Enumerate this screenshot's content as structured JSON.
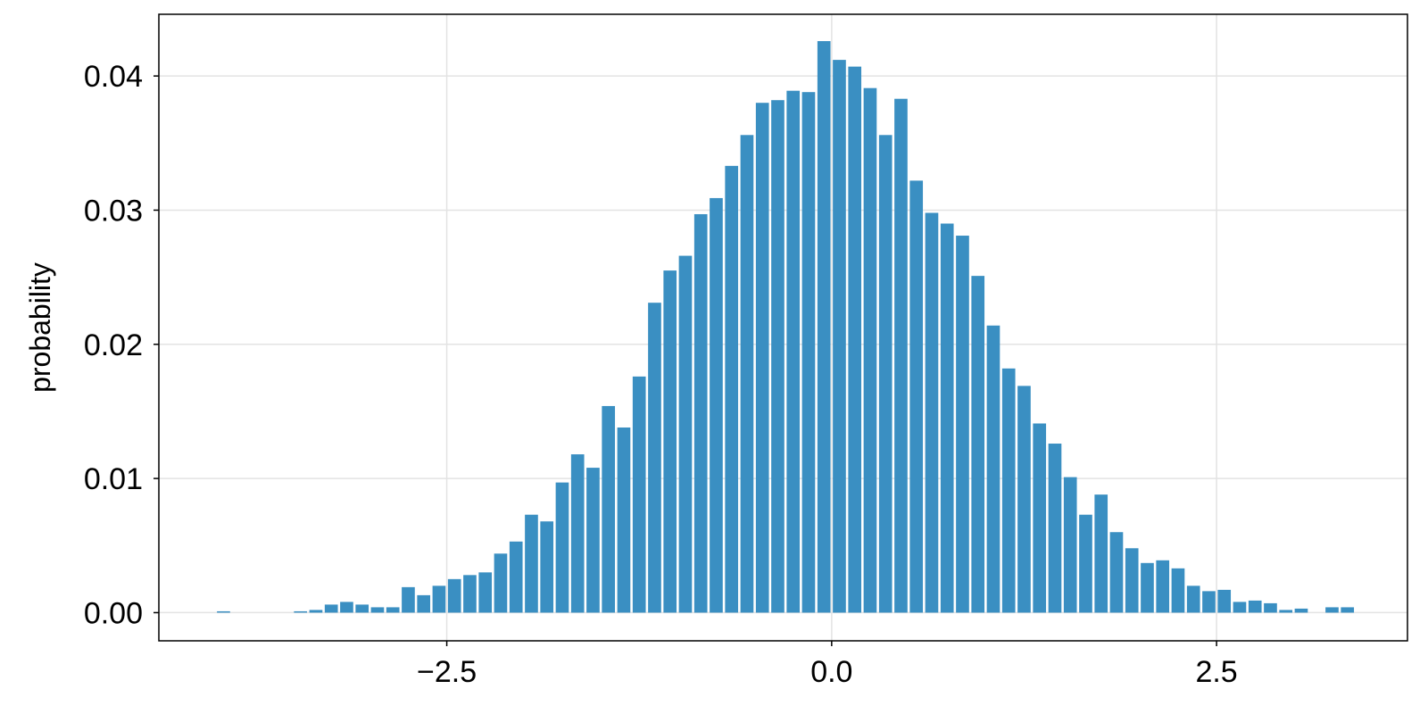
{
  "chart_data": {
    "type": "bar",
    "title": "",
    "xlabel": "",
    "ylabel": "probability",
    "xlim": [
      -4.37,
      3.74
    ],
    "ylim": [
      -0.0021,
      0.0446
    ],
    "xticks": [
      -2.5,
      0.0,
      2.5
    ],
    "xtick_labels": [
      "−2.5",
      "0.0",
      "2.5"
    ],
    "yticks": [
      0.0,
      0.01,
      0.02,
      0.03,
      0.04
    ],
    "ytick_labels": [
      "0.00",
      "0.01",
      "0.02",
      "0.03",
      "0.04"
    ],
    "grid": true,
    "bar_color": "#3a8fc2",
    "series": [
      {
        "x": [
          -3.95,
          -3.85,
          -3.75,
          -3.65,
          -3.55,
          -3.45,
          -3.35,
          -3.25,
          -3.15,
          -3.05,
          -2.95,
          -2.85,
          -2.75,
          -2.65,
          -2.55,
          -2.45,
          -2.35,
          -2.25,
          -2.15,
          -2.05,
          -1.95,
          -1.85,
          -1.75,
          -1.65,
          -1.55,
          -1.45,
          -1.35,
          -1.25,
          -1.15,
          -1.05,
          -0.95,
          -0.85,
          -0.75,
          -0.65,
          -0.55,
          -0.45,
          -0.35,
          -0.25,
          -0.15,
          -0.05,
          0.05,
          0.15,
          0.25,
          0.35,
          0.45,
          0.55,
          0.65,
          0.75,
          0.85,
          0.95,
          1.05,
          1.15,
          1.25,
          1.35,
          1.45,
          1.55,
          1.65,
          1.75,
          1.85,
          1.95,
          2.05,
          2.15,
          2.25,
          2.35,
          2.45,
          2.55,
          2.65,
          2.75,
          2.85,
          2.95,
          3.05,
          3.15,
          3.25,
          3.35
        ],
        "values": [
          0.0001,
          0,
          0,
          0,
          0,
          0.0001,
          0.0002,
          0.0006,
          0.0008,
          0.0006,
          0.0004,
          0.0004,
          0.0019,
          0.0013,
          0.002,
          0.0025,
          0.0028,
          0.003,
          0.0044,
          0.0053,
          0.0073,
          0.0068,
          0.0097,
          0.0118,
          0.0108,
          0.0154,
          0.0138,
          0.0176,
          0.0231,
          0.0255,
          0.0266,
          0.0297,
          0.0309,
          0.0333,
          0.0356,
          0.038,
          0.0382,
          0.0389,
          0.0388,
          0.0426,
          0.0412,
          0.0407,
          0.0391,
          0.0356,
          0.0383,
          0.0322,
          0.0298,
          0.029,
          0.0281,
          0.0251,
          0.0214,
          0.0182,
          0.0169,
          0.0141,
          0.0126,
          0.0101,
          0.0073,
          0.0088,
          0.006,
          0.0048,
          0.0037,
          0.0039,
          0.0033,
          0.002,
          0.0016,
          0.0017,
          0.0008,
          0.0009,
          0.0007,
          0.0002,
          0.0003,
          0,
          0.0004,
          0.0004
        ]
      }
    ]
  }
}
